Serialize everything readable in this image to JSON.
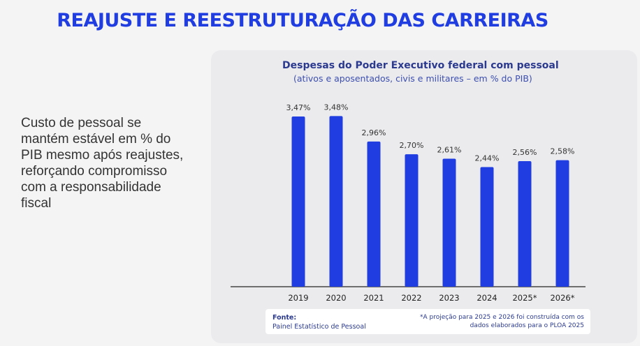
{
  "slide": {
    "title": "REAJUSTE E REESTRUTURAÇÃO DAS CARREIRAS",
    "side_text": "Custo de pessoal se mantém estável em % do PIB mesmo após reajustes, reforçando compromisso com a responsabilidade fiscal"
  },
  "chart_data": {
    "type": "bar",
    "title": "Despesas do Poder Executivo federal com pessoal",
    "subtitle": "(ativos e aposentados, civis e militares – em % do PIB)",
    "categories": [
      "2019",
      "2020",
      "2021",
      "2022",
      "2023",
      "2024",
      "2025*",
      "2026*"
    ],
    "values": [
      3.47,
      3.48,
      2.96,
      2.7,
      2.61,
      2.44,
      2.56,
      2.58
    ],
    "data_labels": [
      "3,47%",
      "3,48%",
      "2,96%",
      "2,70%",
      "2,61%",
      "2,44%",
      "2,56%",
      "2,58%"
    ],
    "ylim": [
      0,
      3.6
    ],
    "bar_color": "#1f3de0",
    "grid": false,
    "xlabel": "",
    "ylabel": ""
  },
  "source": {
    "title": "Fonte:",
    "name": "Painel Estatístico de Pessoal",
    "note": "*A projeção para 2025 e 2026 foi construída com os dados elaborados para o PLOA 2025"
  },
  "colors": {
    "accent": "#1f3de0",
    "chart_title": "#2b3a8f"
  }
}
